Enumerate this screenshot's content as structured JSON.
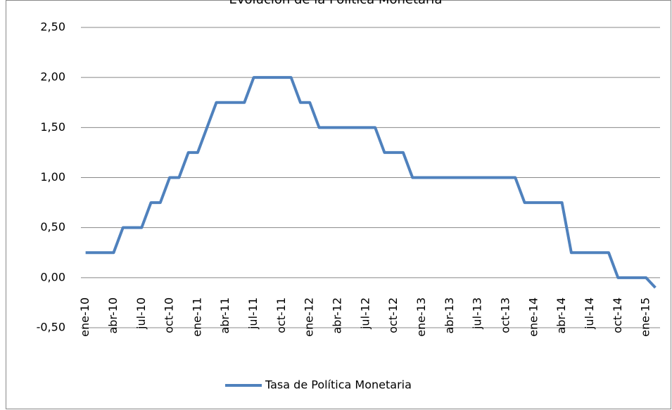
{
  "chart_data": {
    "type": "line",
    "title": "Evolución de la Política Monetaria",
    "categories": [
      "ene-10",
      null,
      null,
      "abr-10",
      null,
      null,
      "jul-10",
      null,
      null,
      "oct-10",
      null,
      null,
      "ene-11",
      null,
      null,
      "abr-11",
      null,
      null,
      "jul-11",
      null,
      null,
      "oct-11",
      null,
      null,
      "ene-12",
      null,
      null,
      "abr-12",
      null,
      null,
      "jul-12",
      null,
      null,
      "oct-12",
      null,
      null,
      "ene-13",
      null,
      null,
      "abr-13",
      null,
      null,
      "jul-13",
      null,
      null,
      "oct-13",
      null,
      null,
      "ene-14",
      null,
      null,
      "abr-14",
      null,
      null,
      "jul-14",
      null,
      null,
      "oct-14",
      null,
      null,
      "ene-15",
      null
    ],
    "series": [
      {
        "name": "Tasa de Política Monetaria",
        "color": "#4f81bd",
        "values": [
          0.25,
          0.25,
          0.25,
          0.25,
          0.5,
          0.5,
          0.5,
          0.75,
          0.75,
          1,
          1,
          1.25,
          1.25,
          1.5,
          1.75,
          1.75,
          1.75,
          1.75,
          2,
          2,
          2,
          2,
          2,
          1.75,
          1.75,
          1.5,
          1.5,
          1.5,
          1.5,
          1.5,
          1.5,
          1.5,
          1.25,
          1.25,
          1.25,
          1,
          1,
          1,
          1,
          1,
          1,
          1,
          1,
          1,
          1,
          1,
          1,
          0.75,
          0.75,
          0.75,
          0.75,
          0.75,
          0.25,
          0.25,
          0.25,
          0.25,
          0.25,
          0,
          0,
          0,
          0,
          -0.1
        ]
      }
    ],
    "ylim": [
      -0.5,
      2.5
    ],
    "yticks": [
      {
        "value": -0.5,
        "label": "-0,50"
      },
      {
        "value": 0,
        "label": "0,00"
      },
      {
        "value": 0.5,
        "label": "0,50"
      },
      {
        "value": 1,
        "label": "1,00"
      },
      {
        "value": 1.5,
        "label": "1,50"
      },
      {
        "value": 2,
        "label": "2,00"
      },
      {
        "value": 2.5,
        "label": "2,50"
      }
    ],
    "grid": true,
    "legend": "bottom"
  }
}
